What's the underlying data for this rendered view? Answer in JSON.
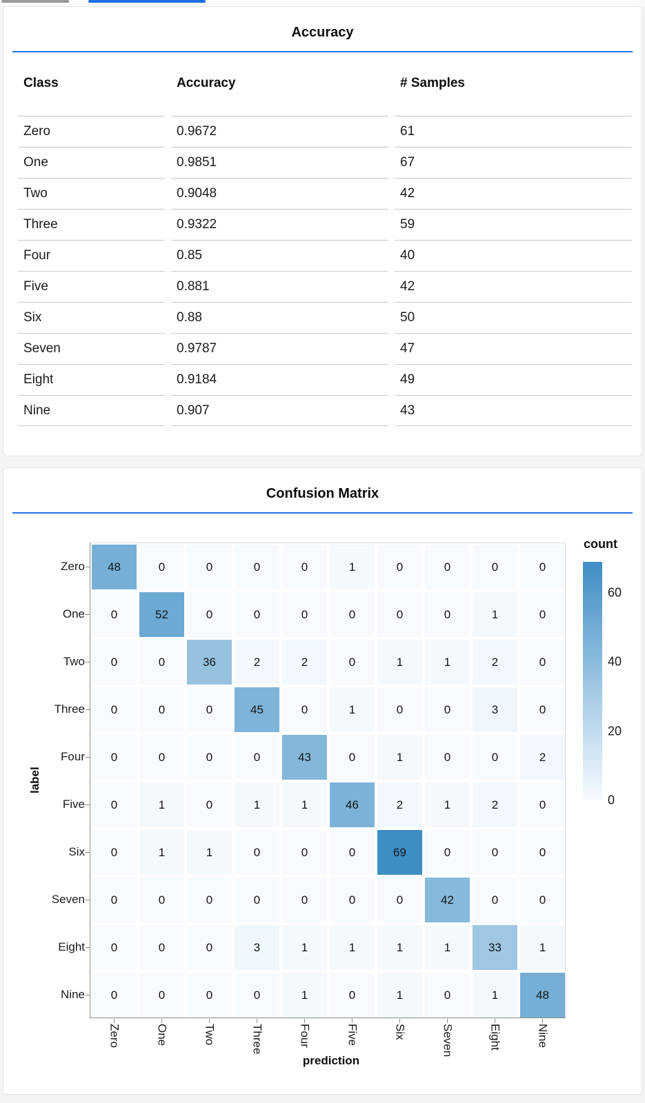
{
  "colors": {
    "divider_blue": "#1f72e8",
    "tab_underline_blue": "#1b6fe3",
    "scrollbar_gray": "#9a9a9a",
    "heat_min": "#f7fbff",
    "heat_max": "#3e8ec4"
  },
  "accuracy_card": {
    "title": "Accuracy",
    "table": {
      "headers": [
        "Class",
        "Accuracy",
        "# Samples"
      ],
      "rows": [
        [
          "Zero",
          "0.9672",
          "61"
        ],
        [
          "One",
          "0.9851",
          "67"
        ],
        [
          "Two",
          "0.9048",
          "42"
        ],
        [
          "Three",
          "0.9322",
          "59"
        ],
        [
          "Four",
          "0.85",
          "40"
        ],
        [
          "Five",
          "0.881",
          "42"
        ],
        [
          "Six",
          "0.88",
          "50"
        ],
        [
          "Seven",
          "0.9787",
          "47"
        ],
        [
          "Eight",
          "0.9184",
          "49"
        ],
        [
          "Nine",
          "0.907",
          "43"
        ]
      ]
    }
  },
  "confusion_card": {
    "title": "Confusion Matrix",
    "x_axis_title": "prediction",
    "y_axis_title": "label",
    "row_labels": [
      "Zero",
      "One",
      "Two",
      "Three",
      "Four",
      "Five",
      "Six",
      "Seven",
      "Eight",
      "Nine"
    ],
    "col_labels": [
      "Zero",
      "One",
      "Two",
      "Three",
      "Four",
      "Five",
      "Six",
      "Seven",
      "Eight",
      "Nine"
    ],
    "matrix": [
      [
        48,
        0,
        0,
        0,
        0,
        1,
        0,
        0,
        0,
        0
      ],
      [
        0,
        52,
        0,
        0,
        0,
        0,
        0,
        0,
        1,
        0
      ],
      [
        0,
        0,
        36,
        2,
        2,
        0,
        1,
        1,
        2,
        0
      ],
      [
        0,
        0,
        0,
        45,
        0,
        1,
        0,
        0,
        3,
        0
      ],
      [
        0,
        0,
        0,
        0,
        43,
        0,
        1,
        0,
        0,
        2
      ],
      [
        0,
        1,
        0,
        1,
        1,
        46,
        2,
        1,
        2,
        0
      ],
      [
        0,
        1,
        1,
        0,
        0,
        0,
        69,
        0,
        0,
        0
      ],
      [
        0,
        0,
        0,
        0,
        0,
        0,
        0,
        42,
        0,
        0
      ],
      [
        0,
        0,
        0,
        3,
        1,
        1,
        1,
        1,
        33,
        1
      ],
      [
        0,
        0,
        0,
        0,
        1,
        0,
        1,
        0,
        1,
        48
      ]
    ],
    "legend": {
      "title": "count",
      "ticks": [
        60,
        40,
        20,
        0
      ],
      "domain_max": 69,
      "domain_min": 0
    }
  },
  "chart_data": [
    {
      "type": "table",
      "title": "Accuracy",
      "columns": [
        "Class",
        "Accuracy",
        "# Samples"
      ],
      "rows": [
        [
          "Zero",
          0.9672,
          61
        ],
        [
          "One",
          0.9851,
          67
        ],
        [
          "Two",
          0.9048,
          42
        ],
        [
          "Three",
          0.9322,
          59
        ],
        [
          "Four",
          0.85,
          40
        ],
        [
          "Five",
          0.881,
          42
        ],
        [
          "Six",
          0.88,
          50
        ],
        [
          "Seven",
          0.9787,
          47
        ],
        [
          "Eight",
          0.9184,
          49
        ],
        [
          "Nine",
          0.907,
          43
        ]
      ]
    },
    {
      "type": "heatmap",
      "title": "Confusion Matrix",
      "xlabel": "prediction",
      "ylabel": "label",
      "x_categories": [
        "Zero",
        "One",
        "Two",
        "Three",
        "Four",
        "Five",
        "Six",
        "Seven",
        "Eight",
        "Nine"
      ],
      "y_categories": [
        "Zero",
        "One",
        "Two",
        "Three",
        "Four",
        "Five",
        "Six",
        "Seven",
        "Eight",
        "Nine"
      ],
      "values": [
        [
          48,
          0,
          0,
          0,
          0,
          1,
          0,
          0,
          0,
          0
        ],
        [
          0,
          52,
          0,
          0,
          0,
          0,
          0,
          0,
          1,
          0
        ],
        [
          0,
          0,
          36,
          2,
          2,
          0,
          1,
          1,
          2,
          0
        ],
        [
          0,
          0,
          0,
          45,
          0,
          1,
          0,
          0,
          3,
          0
        ],
        [
          0,
          0,
          0,
          0,
          43,
          0,
          1,
          0,
          0,
          2
        ],
        [
          0,
          1,
          0,
          1,
          1,
          46,
          2,
          1,
          2,
          0
        ],
        [
          0,
          1,
          1,
          0,
          0,
          0,
          69,
          0,
          0,
          0
        ],
        [
          0,
          0,
          0,
          0,
          0,
          0,
          0,
          42,
          0,
          0
        ],
        [
          0,
          0,
          0,
          3,
          1,
          1,
          1,
          1,
          33,
          1
        ],
        [
          0,
          0,
          0,
          0,
          1,
          0,
          1,
          0,
          1,
          48
        ]
      ],
      "color_scale": {
        "scheme": "blues",
        "domain": [
          0,
          69
        ]
      },
      "legend_title": "count",
      "legend_ticks": [
        60,
        40,
        20,
        0
      ],
      "legend_position": "right"
    }
  ]
}
